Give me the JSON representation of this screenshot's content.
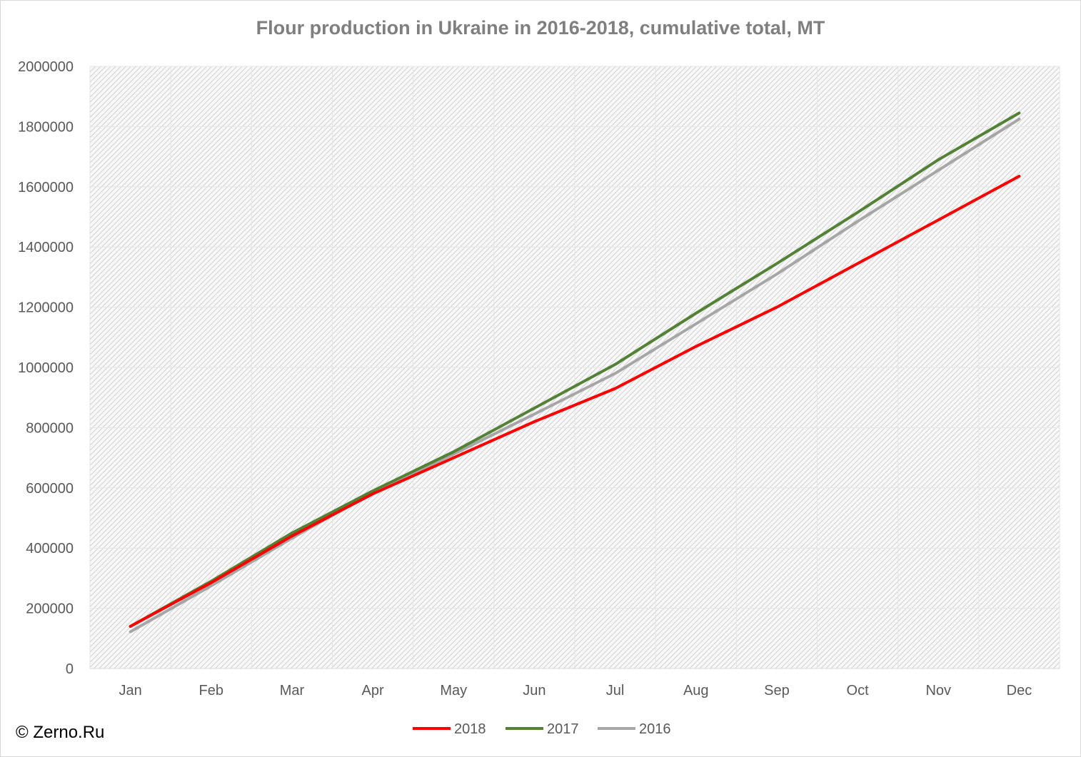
{
  "chart_data": {
    "type": "line",
    "title": "Flour production in Ukraine in 2016-2018, cumulative total, MT",
    "xlabel": "",
    "ylabel": "",
    "ylim": [
      0,
      2000000
    ],
    "yticks": [
      "0",
      "200000",
      "400000",
      "600000",
      "800000",
      "1000000",
      "1200000",
      "1400000",
      "1600000",
      "1800000",
      "2000000"
    ],
    "categories": [
      "Jan",
      "Feb",
      "Mar",
      "Apr",
      "May",
      "Jun",
      "Jul",
      "Aug",
      "Sep",
      "Oct",
      "Nov",
      "Dec"
    ],
    "grid": true,
    "legend_position": "bottom",
    "series": [
      {
        "name": "2018",
        "color": "#ff0000",
        "values": [
          140000,
          285000,
          440000,
          580000,
          700000,
          820000,
          930000,
          1070000,
          1200000,
          1345000,
          1490000,
          1635000
        ]
      },
      {
        "name": "2017",
        "color": "#538135",
        "values": [
          140000,
          290000,
          450000,
          590000,
          720000,
          865000,
          1010000,
          1180000,
          1345000,
          1515000,
          1690000,
          1845000
        ]
      },
      {
        "name": "2016",
        "color": "#a6a6a6",
        "values": [
          122000,
          275000,
          433000,
          585000,
          712000,
          845000,
          980000,
          1145000,
          1310000,
          1485000,
          1655000,
          1825000
        ]
      }
    ]
  },
  "copyright": "© Zerno.Ru"
}
